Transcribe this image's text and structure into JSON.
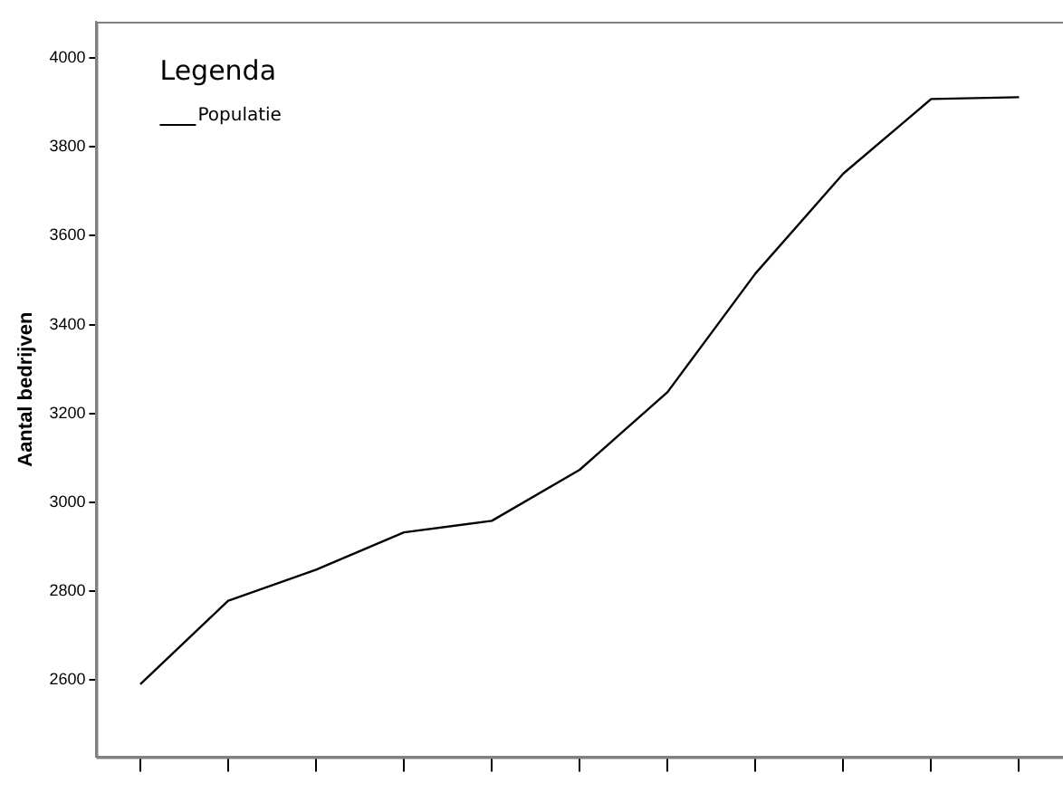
{
  "chart_data": {
    "type": "line",
    "ylabel": "Aantal bedrijven",
    "legend_title": "Legenda",
    "legend": "top left",
    "grid": false,
    "marker": "none",
    "line_style": "solid",
    "categories": [
      null,
      null,
      null,
      null,
      null,
      null,
      null,
      null,
      null,
      null,
      null
    ],
    "series": [
      {
        "name": "Populatie",
        "color": "#000000",
        "values": [
          2590,
          2778,
          2848,
          2932,
          2958,
          3073,
          3248,
          3515,
          3740,
          3908,
          3912
        ]
      }
    ],
    "ylim": [
      2426,
      4082
    ],
    "yticks": [
      2600,
      2800,
      3000,
      3200,
      3400,
      3600,
      3800,
      4000
    ]
  }
}
